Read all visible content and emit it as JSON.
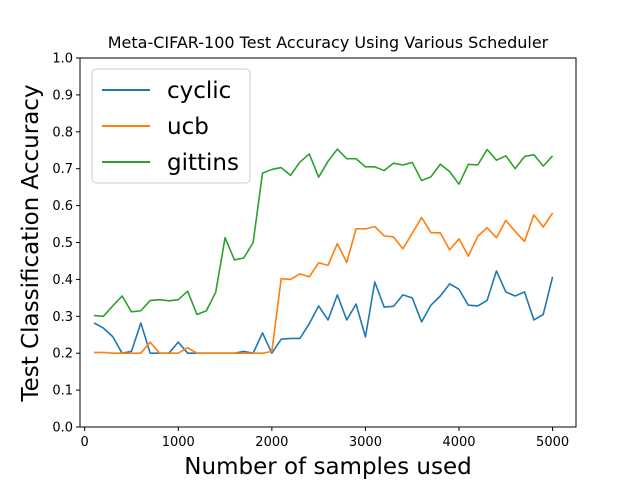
{
  "chart_data": {
    "type": "line",
    "title": "Meta-CIFAR-100 Test Accuracy Using Various Scheduler",
    "xlabel": "Number of samples used",
    "ylabel": "Test Classification Accuracy",
    "xlim": [
      -50,
      5250
    ],
    "ylim": [
      0.0,
      1.0
    ],
    "xticks": [
      0,
      1000,
      2000,
      3000,
      4000,
      5000
    ],
    "yticks": [
      0.0,
      0.1,
      0.2,
      0.3,
      0.4,
      0.5,
      0.6,
      0.7,
      0.8,
      0.9,
      1.0
    ],
    "ytick_labels": [
      "0.0",
      "0.1",
      "0.2",
      "0.3",
      "0.4",
      "0.5",
      "0.6",
      "0.7",
      "0.8",
      "0.9",
      "1.0"
    ],
    "grid": false,
    "legend_position": "top-left",
    "x": [
      100,
      200,
      300,
      400,
      500,
      600,
      700,
      800,
      900,
      1000,
      1100,
      1200,
      1300,
      1400,
      1500,
      1600,
      1700,
      1800,
      1900,
      2000,
      2100,
      2200,
      2300,
      2400,
      2500,
      2600,
      2700,
      2800,
      2900,
      3000,
      3100,
      3200,
      3300,
      3400,
      3500,
      3600,
      3700,
      3800,
      3900,
      4000,
      4100,
      4200,
      4300,
      4400,
      4500,
      4600,
      4700,
      4800,
      4900,
      5000
    ],
    "series": [
      {
        "name": "cyclic",
        "color": "#1f77b4",
        "values": [
          0.282,
          0.268,
          0.245,
          0.2,
          0.205,
          0.282,
          0.2,
          0.2,
          0.2,
          0.23,
          0.2,
          0.2,
          0.2,
          0.2,
          0.2,
          0.2,
          0.205,
          0.2,
          0.255,
          0.2,
          0.238,
          0.24,
          0.24,
          0.28,
          0.328,
          0.29,
          0.358,
          0.29,
          0.333,
          0.244,
          0.393,
          0.325,
          0.327,
          0.358,
          0.35,
          0.285,
          0.33,
          0.355,
          0.388,
          0.373,
          0.33,
          0.328,
          0.343,
          0.423,
          0.366,
          0.355,
          0.366,
          0.29,
          0.305,
          0.407
        ]
      },
      {
        "name": "ucb",
        "color": "#ff7f0e",
        "values": [
          0.202,
          0.202,
          0.2,
          0.2,
          0.2,
          0.2,
          0.23,
          0.2,
          0.2,
          0.2,
          0.215,
          0.2,
          0.2,
          0.2,
          0.2,
          0.2,
          0.2,
          0.2,
          0.2,
          0.205,
          0.402,
          0.4,
          0.415,
          0.407,
          0.445,
          0.438,
          0.497,
          0.446,
          0.537,
          0.537,
          0.543,
          0.518,
          0.515,
          0.483,
          0.525,
          0.568,
          0.527,
          0.526,
          0.48,
          0.51,
          0.463,
          0.517,
          0.54,
          0.513,
          0.56,
          0.53,
          0.503,
          0.575,
          0.542,
          0.58
        ]
      },
      {
        "name": "gittins",
        "color": "#2ca02c",
        "values": [
          0.302,
          0.3,
          0.328,
          0.355,
          0.312,
          0.315,
          0.343,
          0.345,
          0.342,
          0.345,
          0.368,
          0.305,
          0.315,
          0.365,
          0.513,
          0.453,
          0.458,
          0.5,
          0.688,
          0.698,
          0.703,
          0.682,
          0.718,
          0.74,
          0.677,
          0.72,
          0.753,
          0.727,
          0.727,
          0.705,
          0.705,
          0.695,
          0.715,
          0.71,
          0.717,
          0.668,
          0.678,
          0.712,
          0.692,
          0.658,
          0.712,
          0.71,
          0.752,
          0.723,
          0.735,
          0.7,
          0.733,
          0.738,
          0.707,
          0.735
        ]
      }
    ]
  }
}
